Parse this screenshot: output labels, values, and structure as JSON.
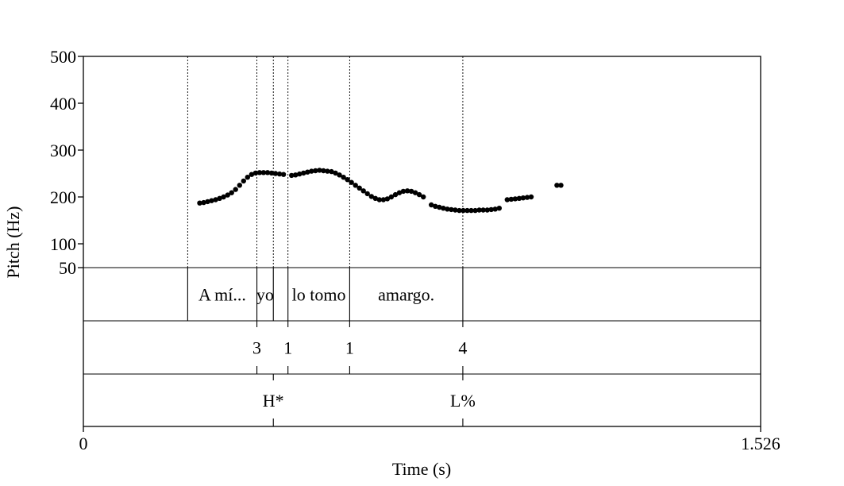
{
  "chart_data": {
    "type": "scatter",
    "xlabel": "Time (s)",
    "ylabel": "Pitch (Hz)",
    "xlim": [
      0,
      1.526
    ],
    "ylim": [
      50,
      500
    ],
    "x_tick_labels": [
      "0",
      "1.526"
    ],
    "y_tick_labels": [
      "50",
      "100",
      "200",
      "300",
      "400",
      "500"
    ],
    "y_ticks": [
      50,
      100,
      200,
      300,
      400,
      500
    ],
    "grid": false,
    "pitch_points": [
      [
        0.262,
        187
      ],
      [
        0.271,
        188
      ],
      [
        0.28,
        190
      ],
      [
        0.289,
        192
      ],
      [
        0.298,
        194
      ],
      [
        0.307,
        197
      ],
      [
        0.316,
        200
      ],
      [
        0.325,
        204
      ],
      [
        0.334,
        209
      ],
      [
        0.343,
        216
      ],
      [
        0.352,
        225
      ],
      [
        0.361,
        234
      ],
      [
        0.37,
        242
      ],
      [
        0.379,
        248
      ],
      [
        0.388,
        251
      ],
      [
        0.397,
        252
      ],
      [
        0.406,
        252
      ],
      [
        0.415,
        252
      ],
      [
        0.424,
        251
      ],
      [
        0.433,
        250
      ],
      [
        0.442,
        249
      ],
      [
        0.451,
        248
      ],
      [
        0.469,
        246
      ],
      [
        0.478,
        247
      ],
      [
        0.487,
        249
      ],
      [
        0.496,
        251
      ],
      [
        0.505,
        253
      ],
      [
        0.514,
        255
      ],
      [
        0.523,
        256
      ],
      [
        0.532,
        257
      ],
      [
        0.541,
        256
      ],
      [
        0.55,
        255
      ],
      [
        0.559,
        254
      ],
      [
        0.568,
        251
      ],
      [
        0.577,
        247
      ],
      [
        0.586,
        242
      ],
      [
        0.595,
        237
      ],
      [
        0.604,
        231
      ],
      [
        0.613,
        225
      ],
      [
        0.622,
        219
      ],
      [
        0.631,
        213
      ],
      [
        0.64,
        207
      ],
      [
        0.649,
        201
      ],
      [
        0.658,
        197
      ],
      [
        0.667,
        194
      ],
      [
        0.676,
        194
      ],
      [
        0.685,
        196
      ],
      [
        0.694,
        200
      ],
      [
        0.703,
        205
      ],
      [
        0.712,
        209
      ],
      [
        0.721,
        212
      ],
      [
        0.73,
        213
      ],
      [
        0.739,
        212
      ],
      [
        0.748,
        209
      ],
      [
        0.757,
        205
      ],
      [
        0.766,
        200
      ],
      [
        0.784,
        183
      ],
      [
        0.793,
        180
      ],
      [
        0.802,
        178
      ],
      [
        0.811,
        176
      ],
      [
        0.82,
        174
      ],
      [
        0.829,
        173
      ],
      [
        0.838,
        172
      ],
      [
        0.847,
        171
      ],
      [
        0.856,
        171
      ],
      [
        0.865,
        171
      ],
      [
        0.874,
        171
      ],
      [
        0.883,
        171
      ],
      [
        0.892,
        172
      ],
      [
        0.901,
        172
      ],
      [
        0.91,
        172
      ],
      [
        0.919,
        173
      ],
      [
        0.928,
        174
      ],
      [
        0.937,
        176
      ],
      [
        0.955,
        194
      ],
      [
        0.964,
        195
      ],
      [
        0.973,
        196
      ],
      [
        0.982,
        197
      ],
      [
        0.991,
        198
      ],
      [
        1.0,
        199
      ],
      [
        1.009,
        200
      ],
      [
        1.067,
        225
      ],
      [
        1.076,
        225
      ]
    ],
    "boundaries": {
      "words": [
        0.235,
        0.391,
        0.428,
        0.461,
        0.6,
        0.855
      ],
      "breaks": [
        0.391,
        0.461,
        0.6,
        0.855
      ],
      "tones": [
        0.428,
        0.855
      ]
    },
    "tiers": {
      "words": [
        {
          "label": "A mí...",
          "center": 0.313
        },
        {
          "label": "yo",
          "center": 0.4095
        },
        {
          "label": "lo tomo",
          "center": 0.5305
        },
        {
          "label": "amargo.",
          "center": 0.7275
        }
      ],
      "breaks": [
        {
          "label": "3",
          "time": 0.391
        },
        {
          "label": "1",
          "time": 0.461
        },
        {
          "label": "1",
          "time": 0.6
        },
        {
          "label": "4",
          "time": 0.855
        }
      ],
      "tones": [
        {
          "label": "H*",
          "time": 0.428
        },
        {
          "label": "L%",
          "time": 0.855
        }
      ]
    }
  }
}
